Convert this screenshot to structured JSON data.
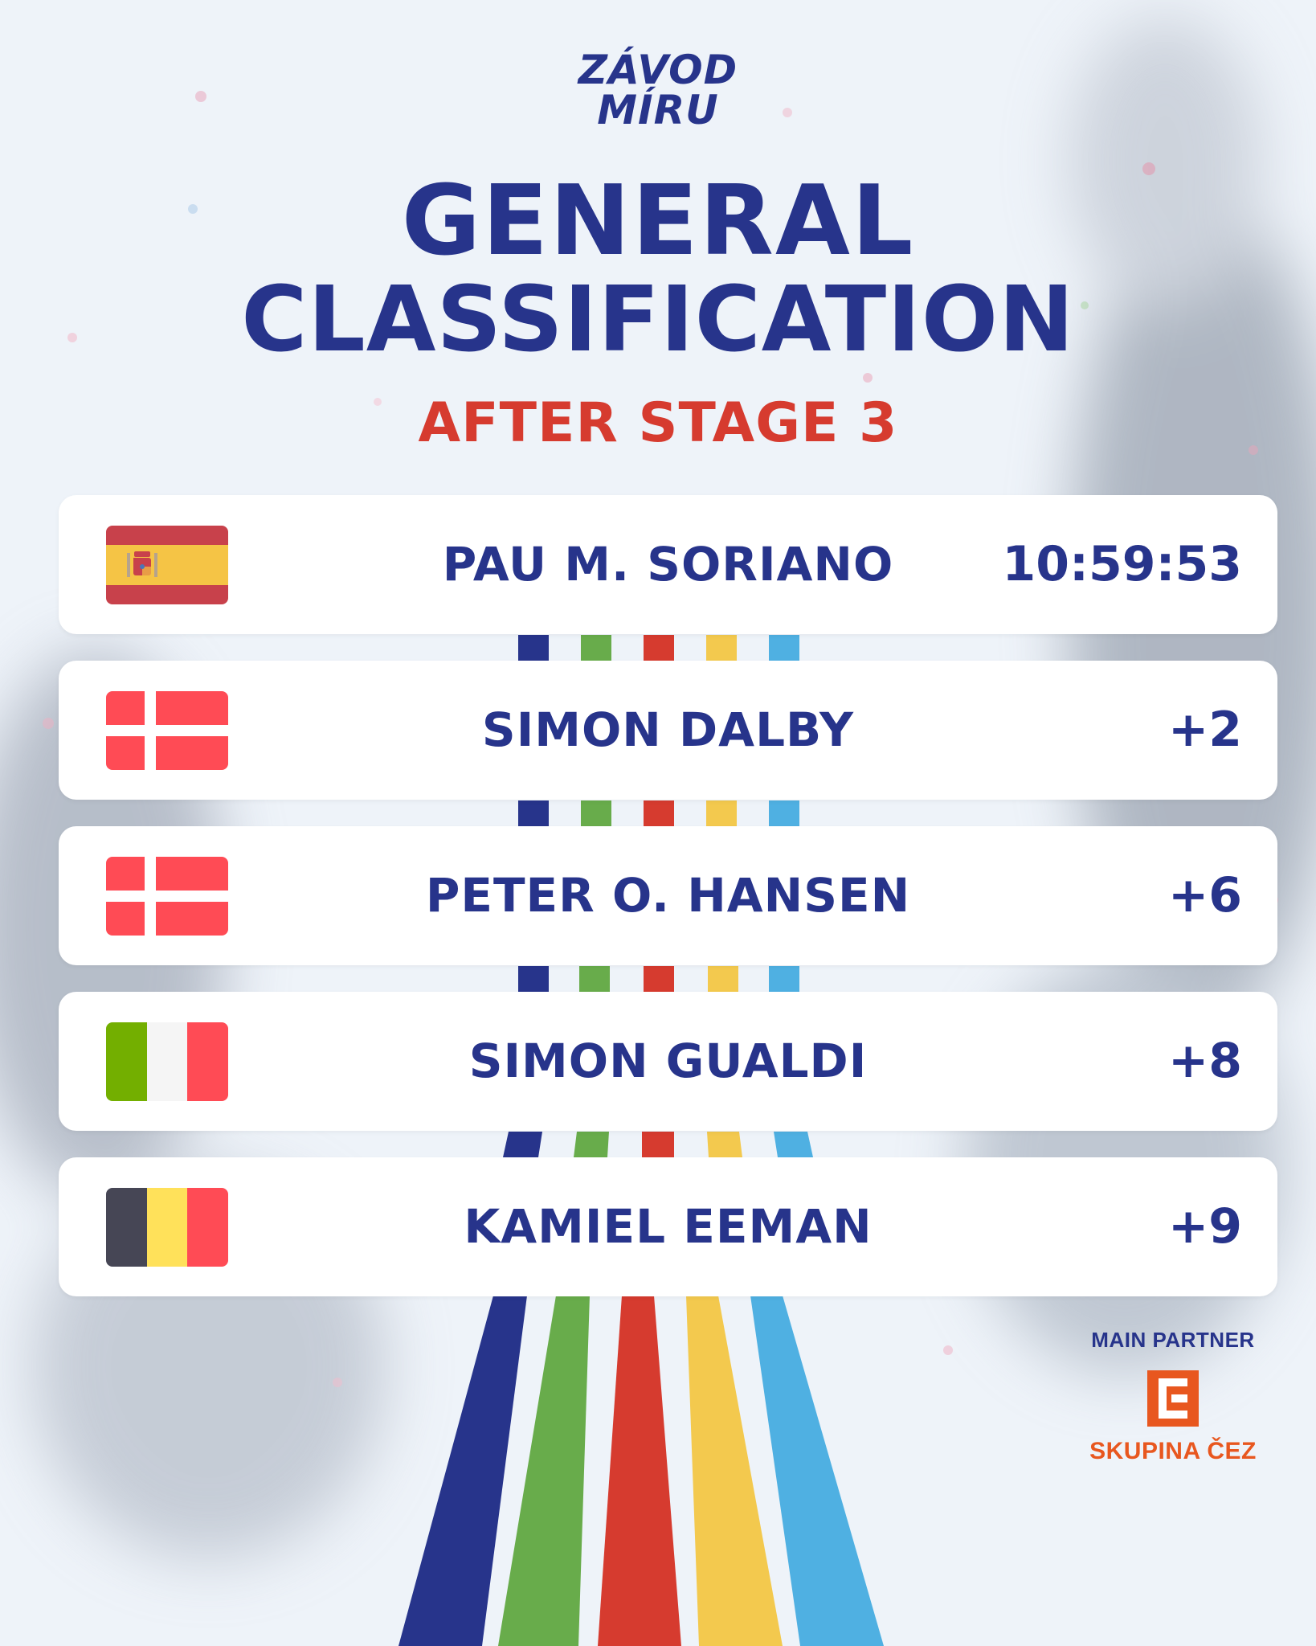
{
  "logo": {
    "line1": "ZÁVOD",
    "line2": "MÍRU"
  },
  "title": {
    "line1": "GENERAL",
    "line2": "CLASSIFICATION"
  },
  "subtitle": "AFTER STAGE 3",
  "colors": {
    "navy": "#27348b",
    "red": "#d63b2f",
    "stripes": [
      "#27348b",
      "#68ac4b",
      "#d63b2f",
      "#f3c94e",
      "#4fb0e2"
    ],
    "cez_orange": "#e8571f"
  },
  "standings": [
    {
      "flag": "spain-flag",
      "name": "PAU M. SORIANO",
      "time": "10:59:53"
    },
    {
      "flag": "denmark-flag",
      "name": "SIMON DALBY",
      "time": "+2"
    },
    {
      "flag": "denmark-flag",
      "name": "PETER O. HANSEN",
      "time": "+6"
    },
    {
      "flag": "italy-flag",
      "name": "SIMON GUALDI",
      "time": "+8"
    },
    {
      "flag": "belgium-flag",
      "name": "KAMIEL EEMAN",
      "time": "+9"
    }
  ],
  "partner": {
    "label": "MAIN PARTNER",
    "name": "SKUPINA ČEZ",
    "logo_icon": "cez-logo-icon"
  }
}
